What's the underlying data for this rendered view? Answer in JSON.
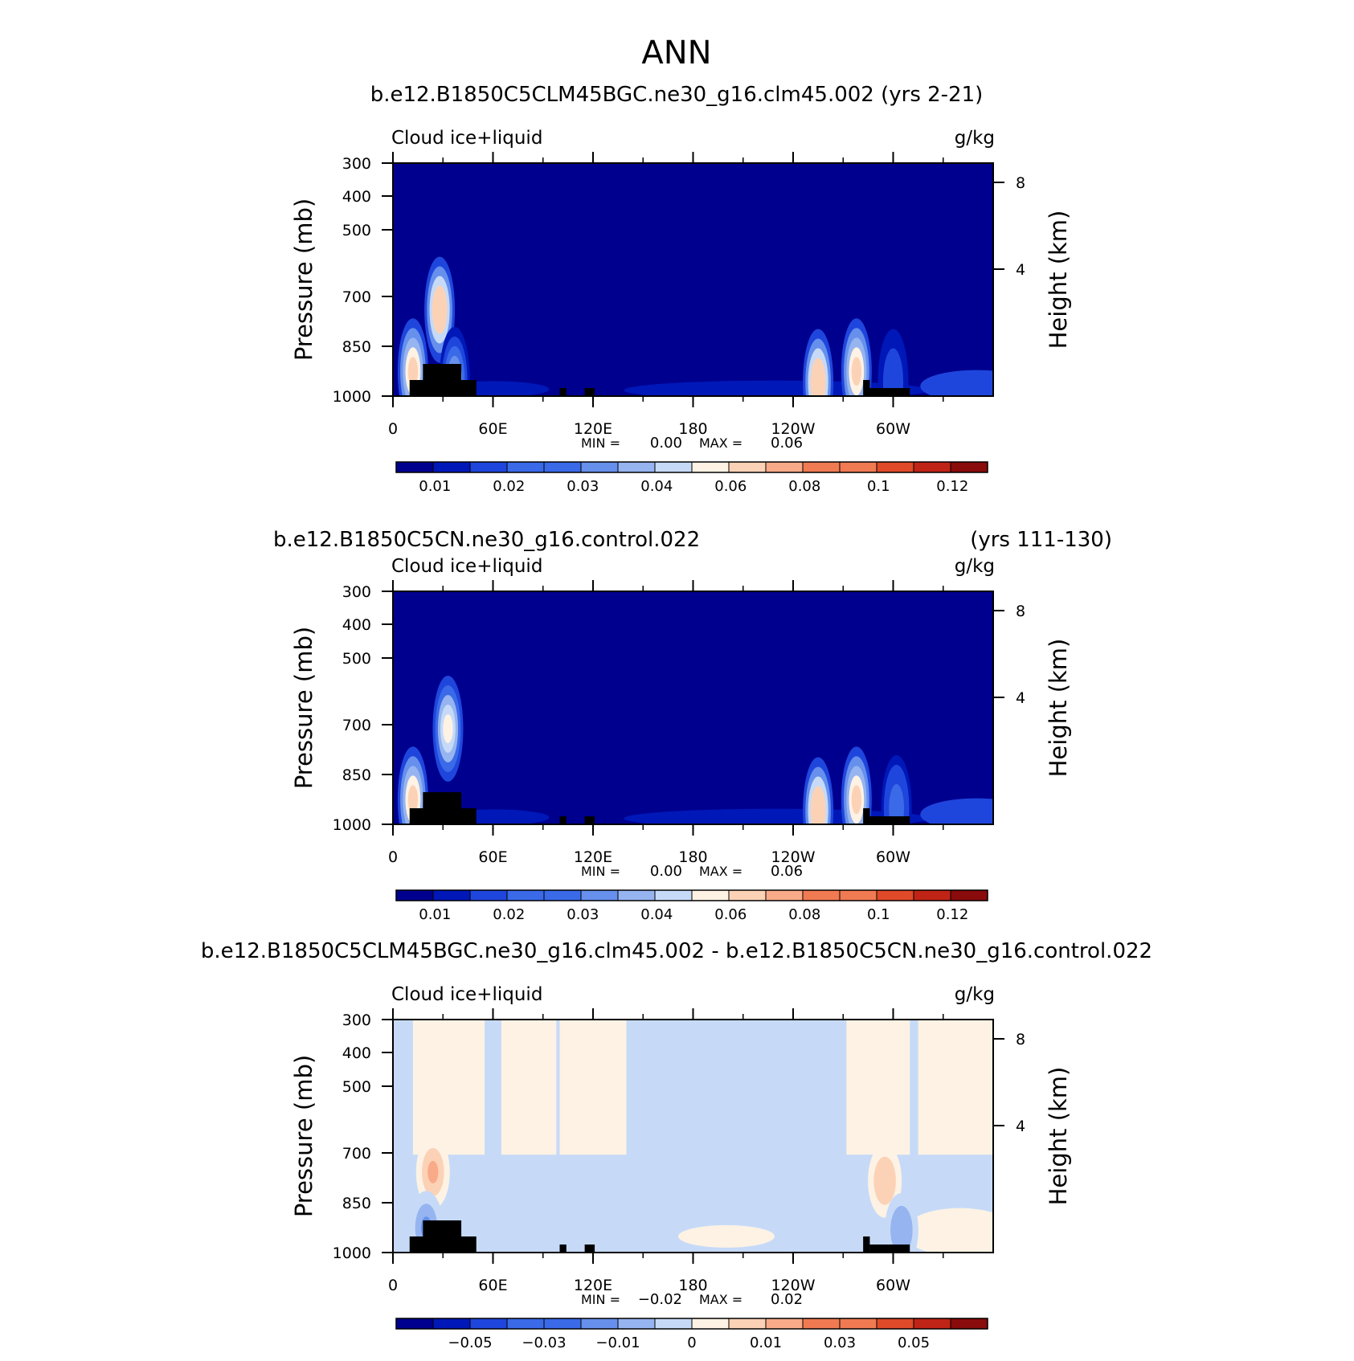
{
  "figure_title": "ANN",
  "chart_data": [
    {
      "type": "heatmap",
      "title": "b.e12.B1850C5CLM45BGC.ne30_g16.clm45.002 (yrs 2-21)",
      "variable_label": "Cloud ice+liquid",
      "units": "g/kg",
      "ylabel_left": "Pressure (mb)",
      "ylabel_right": "Height (km)",
      "x_ticks": [
        "0",
        "60E",
        "120E",
        "180",
        "120W",
        "60W"
      ],
      "xlim": [
        0,
        360
      ],
      "y_ticks_left": [
        "300",
        "400",
        "500",
        "700",
        "850",
        "1000"
      ],
      "y_ticks_right": [
        "8",
        "4"
      ],
      "ylim": [
        1000,
        300
      ],
      "min_label": "MIN =",
      "min_value": "0.00",
      "max_label": "MAX =",
      "max_value": "0.06",
      "colorbar_labels": [
        "0.01",
        "0.02",
        "0.03",
        "0.04",
        "0.06",
        "0.08",
        "0.1",
        "0.12"
      ],
      "features": [
        {
          "lon": 12,
          "p": 880,
          "value": 0.045
        },
        {
          "lon": 28,
          "p": 640,
          "value": 0.05
        },
        {
          "lon": 37,
          "p": 920,
          "value": 0.03
        },
        {
          "lon": 255,
          "p": 930,
          "value": 0.05
        },
        {
          "lon": 278,
          "p": 880,
          "value": 0.045
        },
        {
          "lon": 300,
          "p": 930,
          "value": 0.015
        }
      ]
    },
    {
      "type": "heatmap",
      "title": "b.e12.B1850C5CN.ne30_g16.control.022",
      "title_right": "(yrs 111-130)",
      "variable_label": "Cloud ice+liquid",
      "units": "g/kg",
      "ylabel_left": "Pressure (mb)",
      "ylabel_right": "Height (km)",
      "x_ticks": [
        "0",
        "60E",
        "120E",
        "180",
        "120W",
        "60W"
      ],
      "xlim": [
        0,
        360
      ],
      "y_ticks_left": [
        "300",
        "400",
        "500",
        "700",
        "850",
        "1000"
      ],
      "y_ticks_right": [
        "8",
        "4"
      ],
      "ylim": [
        1000,
        300
      ],
      "min_label": "MIN =",
      "min_value": "0.00",
      "max_label": "MAX =",
      "max_value": "0.06",
      "colorbar_labels": [
        "0.01",
        "0.02",
        "0.03",
        "0.04",
        "0.06",
        "0.08",
        "0.1",
        "0.12"
      ],
      "features": [
        {
          "lon": 12,
          "p": 880,
          "value": 0.045
        },
        {
          "lon": 33,
          "p": 610,
          "value": 0.04
        },
        {
          "lon": 255,
          "p": 930,
          "value": 0.05
        },
        {
          "lon": 278,
          "p": 880,
          "value": 0.045
        },
        {
          "lon": 302,
          "p": 920,
          "value": 0.02
        }
      ]
    },
    {
      "type": "heatmap",
      "title": "b.e12.B1850C5CLM45BGC.ne30_g16.clm45.002 - b.e12.B1850C5CN.ne30_g16.control.022",
      "variable_label": "Cloud ice+liquid",
      "units": "g/kg",
      "ylabel_left": "Pressure (mb)",
      "ylabel_right": "Height (km)",
      "x_ticks": [
        "0",
        "60E",
        "120E",
        "180",
        "120W",
        "60W"
      ],
      "xlim": [
        0,
        360
      ],
      "y_ticks_left": [
        "300",
        "400",
        "500",
        "700",
        "850",
        "1000"
      ],
      "y_ticks_right": [
        "8",
        "4"
      ],
      "ylim": [
        1000,
        300
      ],
      "min_label": "MIN =",
      "min_value": "−0.02",
      "max_label": "MAX =",
      "max_value": "0.02",
      "colorbar_labels": [
        "−0.05",
        "−0.03",
        "−0.01",
        "0",
        "0.01",
        "0.03",
        "0.05"
      ],
      "features": [
        {
          "lon": 24,
          "p": 660,
          "value": 0.02
        },
        {
          "lon": 20,
          "p": 880,
          "value": -0.02
        },
        {
          "lon": 295,
          "p": 690,
          "value": 0.015
        },
        {
          "lon": 305,
          "p": 890,
          "value": -0.015
        }
      ]
    }
  ],
  "colormap": [
    "#00008f",
    "#0018b8",
    "#1f46dc",
    "#3a6ae8",
    "#6690ec",
    "#96b4f0",
    "#c6daf8",
    "#fdf2e4",
    "#fcd2b6",
    "#f9aa88",
    "#f07a52",
    "#e04a28",
    "#c02416",
    "#8a0b0b"
  ]
}
